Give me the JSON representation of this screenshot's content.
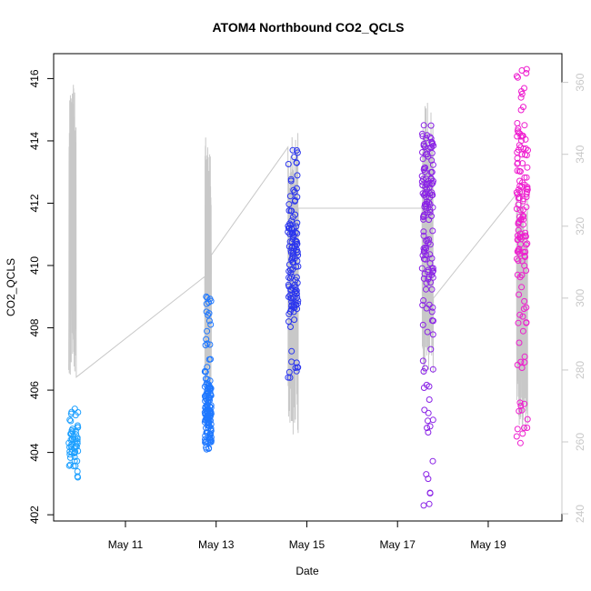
{
  "chart_data": {
    "type": "scatter",
    "title": "ATOM4 Northbound CO2_QCLS",
    "xlabel": "Date",
    "ylabel": "CO2_QCLS",
    "x_range": [
      "2018-05-09T10:00",
      "2018-05-20T15:00"
    ],
    "x_ticks": [
      {
        "label": "May 11",
        "x": "2018-05-11"
      },
      {
        "label": "May 13",
        "x": "2018-05-13"
      },
      {
        "label": "May 15",
        "x": "2018-05-15"
      },
      {
        "label": "May 17",
        "x": "2018-05-17"
      },
      {
        "label": "May 19",
        "x": "2018-05-19"
      }
    ],
    "y_left_range": [
      401.8,
      416.8
    ],
    "y_left_ticks": [
      402,
      404,
      406,
      408,
      410,
      412,
      414,
      416
    ],
    "y_right_range": [
      238,
      368
    ],
    "y_right_ticks": [
      240,
      260,
      280,
      300,
      320,
      340,
      360
    ],
    "grid": false,
    "marker": "open-circle",
    "point_series": [
      {
        "color": "#1ea0ff",
        "x_range": [
          "2018-05-09T18:00",
          "2018-05-09T23:00"
        ],
        "y_min": 403.2,
        "y_max": 405.4,
        "y_center": 404.4,
        "count": 55
      },
      {
        "color": "#1f78ff",
        "x_range": [
          "2018-05-12T18:00",
          "2018-05-12T21:30"
        ],
        "y_min": 404.1,
        "y_max": 409.0,
        "y_center": 405.3,
        "count": 140
      },
      {
        "color": "#2a35ee",
        "x_range": [
          "2018-05-14T14:00",
          "2018-05-14T19:30"
        ],
        "y_min": 406.4,
        "y_max": 413.7,
        "y_center": 410.0,
        "count": 130
      },
      {
        "color": "#8a22e6",
        "x_range": [
          "2018-05-17T13:00",
          "2018-05-17T19:00"
        ],
        "y_min": 402.3,
        "y_max": 414.5,
        "y_center": 411.8,
        "count": 150
      },
      {
        "color": "#ee1ecf",
        "x_range": [
          "2018-05-19T15:00",
          "2018-05-19T21:00"
        ],
        "y_min": 404.3,
        "y_max": 416.3,
        "y_center": 412.0,
        "count": 140
      }
    ],
    "line_series": {
      "color": "#c8c8c8",
      "axis": "right",
      "segments": [
        {
          "x_range": [
            "2018-05-09T18:00",
            "2018-05-09T22:00"
          ],
          "y_min": 278,
          "y_max": 362,
          "start": 280,
          "end": 278
        },
        {
          "x_range": [
            "2018-05-12T18:00",
            "2018-05-12T21:30"
          ],
          "y_min": 268,
          "y_max": 345,
          "start": 306,
          "end": 312
        },
        {
          "x_range": [
            "2018-05-14T14:00",
            "2018-05-14T19:30"
          ],
          "y_min": 262,
          "y_max": 346,
          "start": 342,
          "end": 325
        },
        {
          "x_range": [
            "2018-05-17T13:00",
            "2018-05-17T19:00"
          ],
          "y_min": 278,
          "y_max": 355,
          "start": 325,
          "end": 300
        },
        {
          "x_range": [
            "2018-05-19T15:00",
            "2018-05-19T21:00"
          ],
          "y_min": 262,
          "y_max": 330,
          "start": 329,
          "end": 265
        }
      ]
    }
  }
}
